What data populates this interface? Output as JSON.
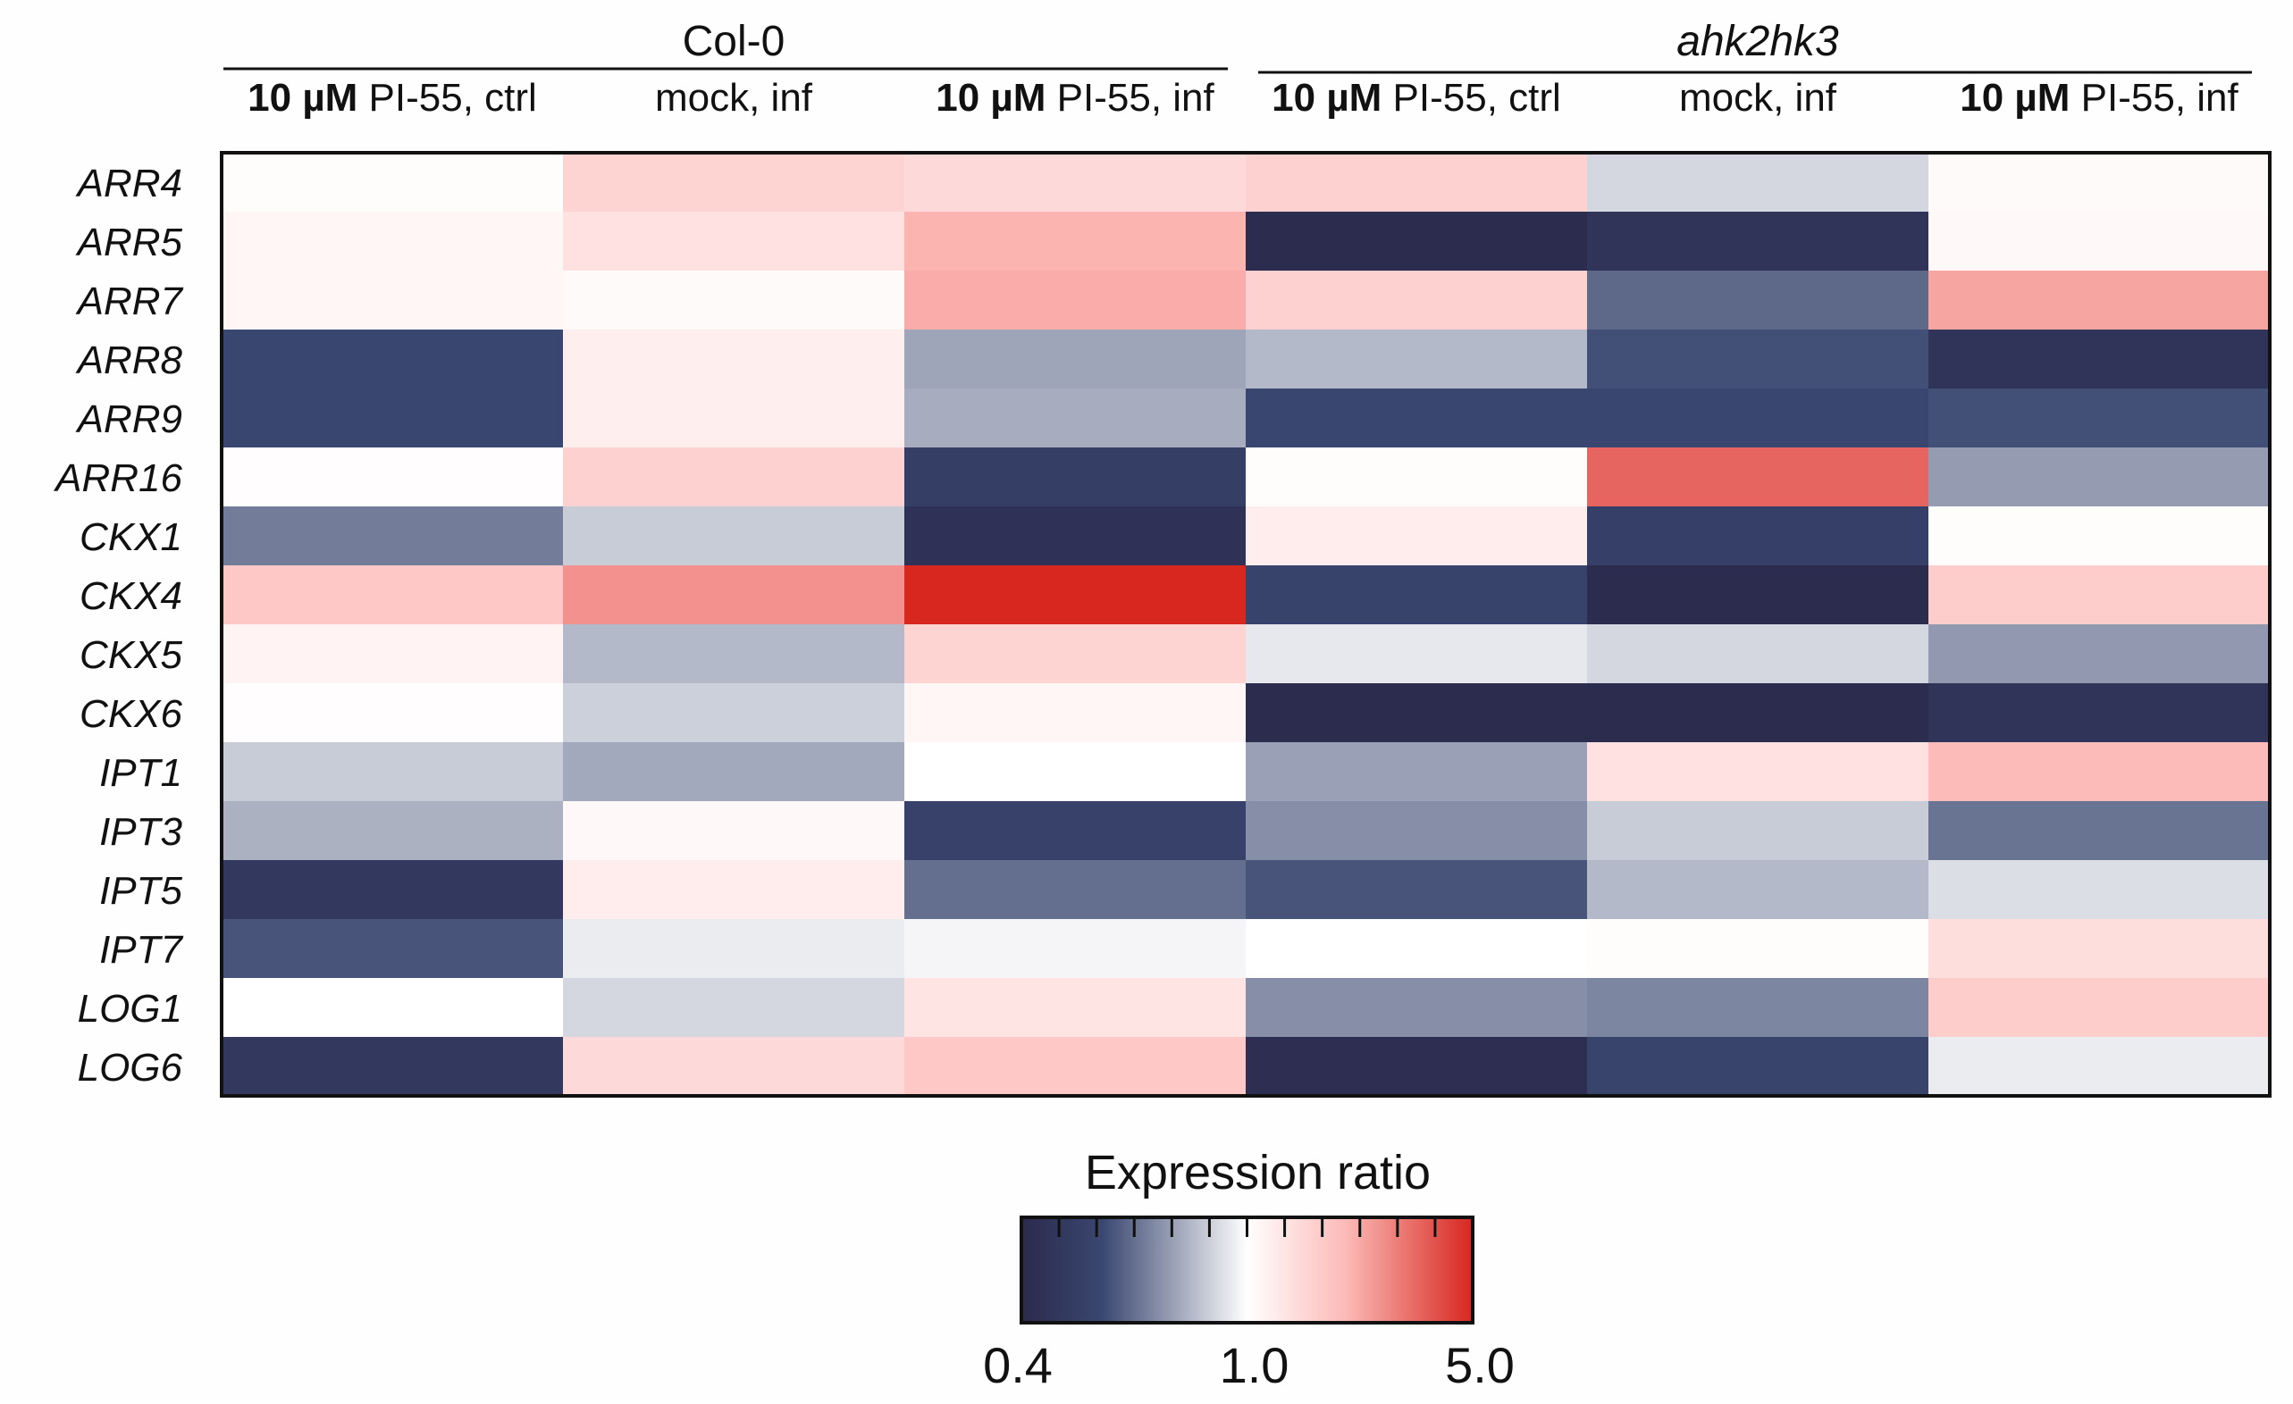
{
  "chart_data": {
    "type": "heatmap",
    "title": "",
    "groups": [
      {
        "name": "Col-0",
        "italic": false,
        "columns": [
          0,
          1,
          2
        ]
      },
      {
        "name": "ahk2hk3",
        "italic": true,
        "columns": [
          3,
          4,
          5
        ]
      }
    ],
    "conditions": [
      {
        "bold": "10 µM",
        "rest": " PI-55, ctrl"
      },
      {
        "bold": "",
        "rest": "mock, inf"
      },
      {
        "bold": "10 µM",
        "rest": " PI-55, inf"
      },
      {
        "bold": "10 µM",
        "rest": " PI-55, ctrl"
      },
      {
        "bold": "",
        "rest": "mock, inf"
      },
      {
        "bold": "10 µM",
        "rest": " PI-55, inf"
      }
    ],
    "genes": [
      "ARR4",
      "ARR5",
      "ARR7",
      "ARR8",
      "ARR9",
      "ARR16",
      "CKX1",
      "CKX4",
      "CKX5",
      "CKX6",
      "IPT1",
      "IPT3",
      "IPT5",
      "IPT7",
      "LOG1",
      "LOG6"
    ],
    "values": [
      [
        1.03,
        1.55,
        1.45,
        1.6,
        0.88,
        1.05
      ],
      [
        1.1,
        1.35,
        2.1,
        0.41,
        0.45,
        1.07
      ],
      [
        1.1,
        1.05,
        2.2,
        1.6,
        0.62,
        2.3
      ],
      [
        0.55,
        1.18,
        0.75,
        0.8,
        0.57,
        0.45
      ],
      [
        0.55,
        1.18,
        0.77,
        0.55,
        0.55,
        0.57
      ],
      [
        1.02,
        1.6,
        0.5,
        1.03,
        3.4,
        0.73
      ],
      [
        0.66,
        0.85,
        0.44,
        1.2,
        0.51,
        1.03
      ],
      [
        1.75,
        2.6,
        5.0,
        0.53,
        0.41,
        1.65
      ],
      [
        1.12,
        0.8,
        1.55,
        0.93,
        0.88,
        0.72
      ],
      [
        1.02,
        0.86,
        1.1,
        0.41,
        0.41,
        0.45
      ],
      [
        0.85,
        0.76,
        1.0,
        0.74,
        1.35,
        2.0
      ],
      [
        0.78,
        1.07,
        0.52,
        0.7,
        0.85,
        0.64
      ],
      [
        0.47,
        1.2,
        0.63,
        0.58,
        0.8,
        0.9
      ],
      [
        0.58,
        0.94,
        0.97,
        1.0,
        1.03,
        1.4
      ],
      [
        1.0,
        0.88,
        1.3,
        0.7,
        0.68,
        1.65
      ],
      [
        0.47,
        1.45,
        1.75,
        0.42,
        0.54,
        0.94
      ]
    ],
    "scale": {
      "title": "Expression ratio",
      "min": 0.4,
      "mid": 1.0,
      "max": 5.0,
      "ticks": [
        "0.4",
        "1.0",
        "5.0"
      ],
      "low_color": "#2b2a4c",
      "mid_color": "#ffffff",
      "high_color": "#d7271f",
      "stops": [
        {
          "v": 0.0,
          "color": "#2b2a4c"
        },
        {
          "v": 0.18,
          "color": "#3a4770"
        },
        {
          "v": 0.5,
          "color": "#ffffff"
        },
        {
          "v": 0.72,
          "color": "#fcb9b6"
        },
        {
          "v": 1.0,
          "color": "#d7271f"
        }
      ]
    }
  }
}
